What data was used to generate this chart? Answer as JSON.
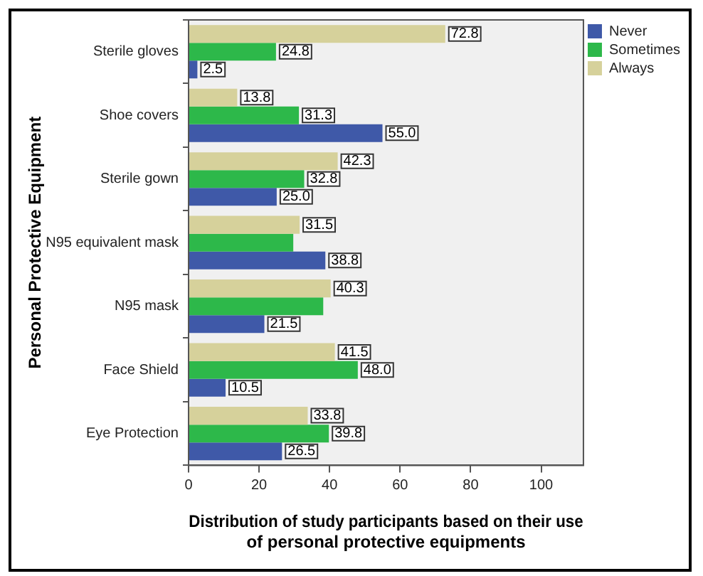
{
  "chart_data": {
    "type": "bar",
    "orientation": "horizontal",
    "xlabel": "Distribution of study participants based on their use of personal protective equipments",
    "ylabel": "Personal Protective Equipment",
    "categories": [
      "Sterile gloves",
      "Shoe covers",
      "Sterile gown",
      "N95 equivalent mask",
      "N95 mask",
      "Face Shield",
      "Eye Protection"
    ],
    "series": [
      {
        "name": "Never",
        "color": "#3f59a8",
        "values": [
          2.5,
          55.0,
          25.0,
          38.8,
          21.5,
          10.5,
          26.5
        ],
        "value_labels": [
          "2.5",
          "55.0",
          "25.0",
          "38.8",
          "21.5",
          "10.5",
          "26.5"
        ]
      },
      {
        "name": "Sometimes",
        "color": "#2db84a",
        "values": [
          24.8,
          31.3,
          32.8,
          29.7,
          38.2,
          48.0,
          39.8
        ],
        "value_labels": [
          "24.8",
          "31.3",
          "32.8",
          null,
          null,
          "48.0",
          "39.8"
        ]
      },
      {
        "name": "Always",
        "color": "#d6d19b",
        "values": [
          72.8,
          13.8,
          42.3,
          31.5,
          40.3,
          41.5,
          33.8
        ],
        "value_labels": [
          "72.8",
          "13.8",
          "42.3",
          "31.5",
          "40.3",
          "41.5",
          "33.8"
        ]
      }
    ],
    "xlim": [
      0,
      112
    ],
    "xticks": [
      0,
      20,
      40,
      60,
      80,
      100
    ],
    "grid": false,
    "legend": "top right"
  }
}
